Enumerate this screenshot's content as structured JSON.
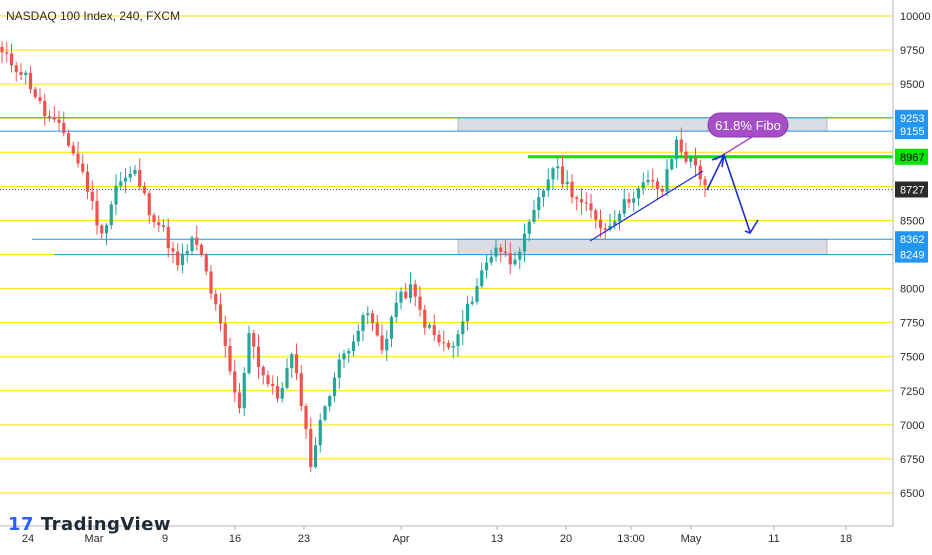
{
  "chart_data": {
    "type": "candlestick",
    "title": "NASDAQ 100 Index, 240, FXCM",
    "ylim": [
      6350,
      10100
    ],
    "y_ticks": [
      6500,
      6750,
      7000,
      7250,
      7500,
      7750,
      8000,
      8250,
      8500,
      8750,
      9000,
      9250,
      9500,
      9750,
      10000
    ],
    "x_ticks": [
      "24",
      "Mar",
      "9",
      "16",
      "23",
      "Apr",
      "13",
      "20",
      "13:00",
      "May",
      "11",
      "18"
    ],
    "price_labels": [
      {
        "value": 9253,
        "label": "9253",
        "color": "#2196f3"
      },
      {
        "value": 9155,
        "label": "9155",
        "color": "#2196f3"
      },
      {
        "value": 8967,
        "label": "8967",
        "color": "#00e600"
      },
      {
        "value": 8727,
        "label": "8727",
        "color": "#2b2b2b"
      },
      {
        "value": 8362,
        "label": "8362",
        "color": "#2196f3"
      },
      {
        "value": 8249,
        "label": "8249",
        "color": "#2196f3"
      }
    ],
    "horizontal_lines": [
      {
        "value": 9253,
        "color": "#2196f3"
      },
      {
        "value": 9155,
        "color": "#2196f3"
      },
      {
        "value": 8967,
        "color": "#00e600"
      },
      {
        "value": 8362,
        "color": "#2196f3"
      },
      {
        "value": 8249,
        "color": "#2196f3"
      }
    ],
    "zones": [
      {
        "y_range": [
          9155,
          9253
        ],
        "color": "#d1d4dc"
      },
      {
        "y_range": [
          8249,
          8362
        ],
        "color": "#d1d4dc"
      }
    ],
    "current_price": 8727,
    "annotation": {
      "text": "61.8% Fibo",
      "color": "#a64dc8"
    },
    "grid_color": "#ffe100",
    "colors": {
      "up": "#26a69a",
      "down": "#ef5350",
      "trend": "#1e2bd8",
      "axis_text": "#2b2b2b"
    },
    "series": [
      {
        "name": "",
        "waypoints": [
          [
            0,
            9720
          ],
          [
            5,
            9560
          ],
          [
            9,
            9280
          ],
          [
            13,
            9140
          ],
          [
            17,
            8850
          ],
          [
            21,
            8380
          ],
          [
            24,
            8760
          ],
          [
            28,
            8850
          ],
          [
            31,
            8580
          ],
          [
            34,
            8420
          ],
          [
            37,
            8160
          ],
          [
            40,
            8350
          ],
          [
            42,
            8240
          ],
          [
            44,
            7980
          ],
          [
            46,
            7720
          ],
          [
            48,
            7380
          ],
          [
            50,
            7100
          ],
          [
            52,
            7700
          ],
          [
            54,
            7450
          ],
          [
            56,
            7300
          ],
          [
            58,
            7200
          ],
          [
            61,
            7500
          ],
          [
            63,
            7180
          ],
          [
            65,
            6720
          ],
          [
            68,
            7150
          ],
          [
            71,
            7450
          ],
          [
            74,
            7650
          ],
          [
            77,
            7820
          ],
          [
            80,
            7550
          ],
          [
            83,
            7900
          ],
          [
            86,
            8000
          ],
          [
            89,
            7750
          ],
          [
            92,
            7600
          ],
          [
            95,
            7560
          ],
          [
            98,
            7850
          ],
          [
            101,
            8120
          ],
          [
            104,
            8320
          ],
          [
            107,
            8200
          ],
          [
            110,
            8360
          ],
          [
            113,
            8640
          ],
          [
            116,
            8900
          ],
          [
            119,
            8760
          ],
          [
            122,
            8620
          ],
          [
            125,
            8520
          ],
          [
            127,
            8430
          ],
          [
            130,
            8580
          ],
          [
            133,
            8700
          ],
          [
            136,
            8780
          ],
          [
            139,
            8720
          ],
          [
            142,
            9080
          ],
          [
            144,
            8960
          ],
          [
            146,
            8900
          ],
          [
            148,
            8760
          ]
        ]
      }
    ]
  },
  "watermark": "17 TradingView"
}
